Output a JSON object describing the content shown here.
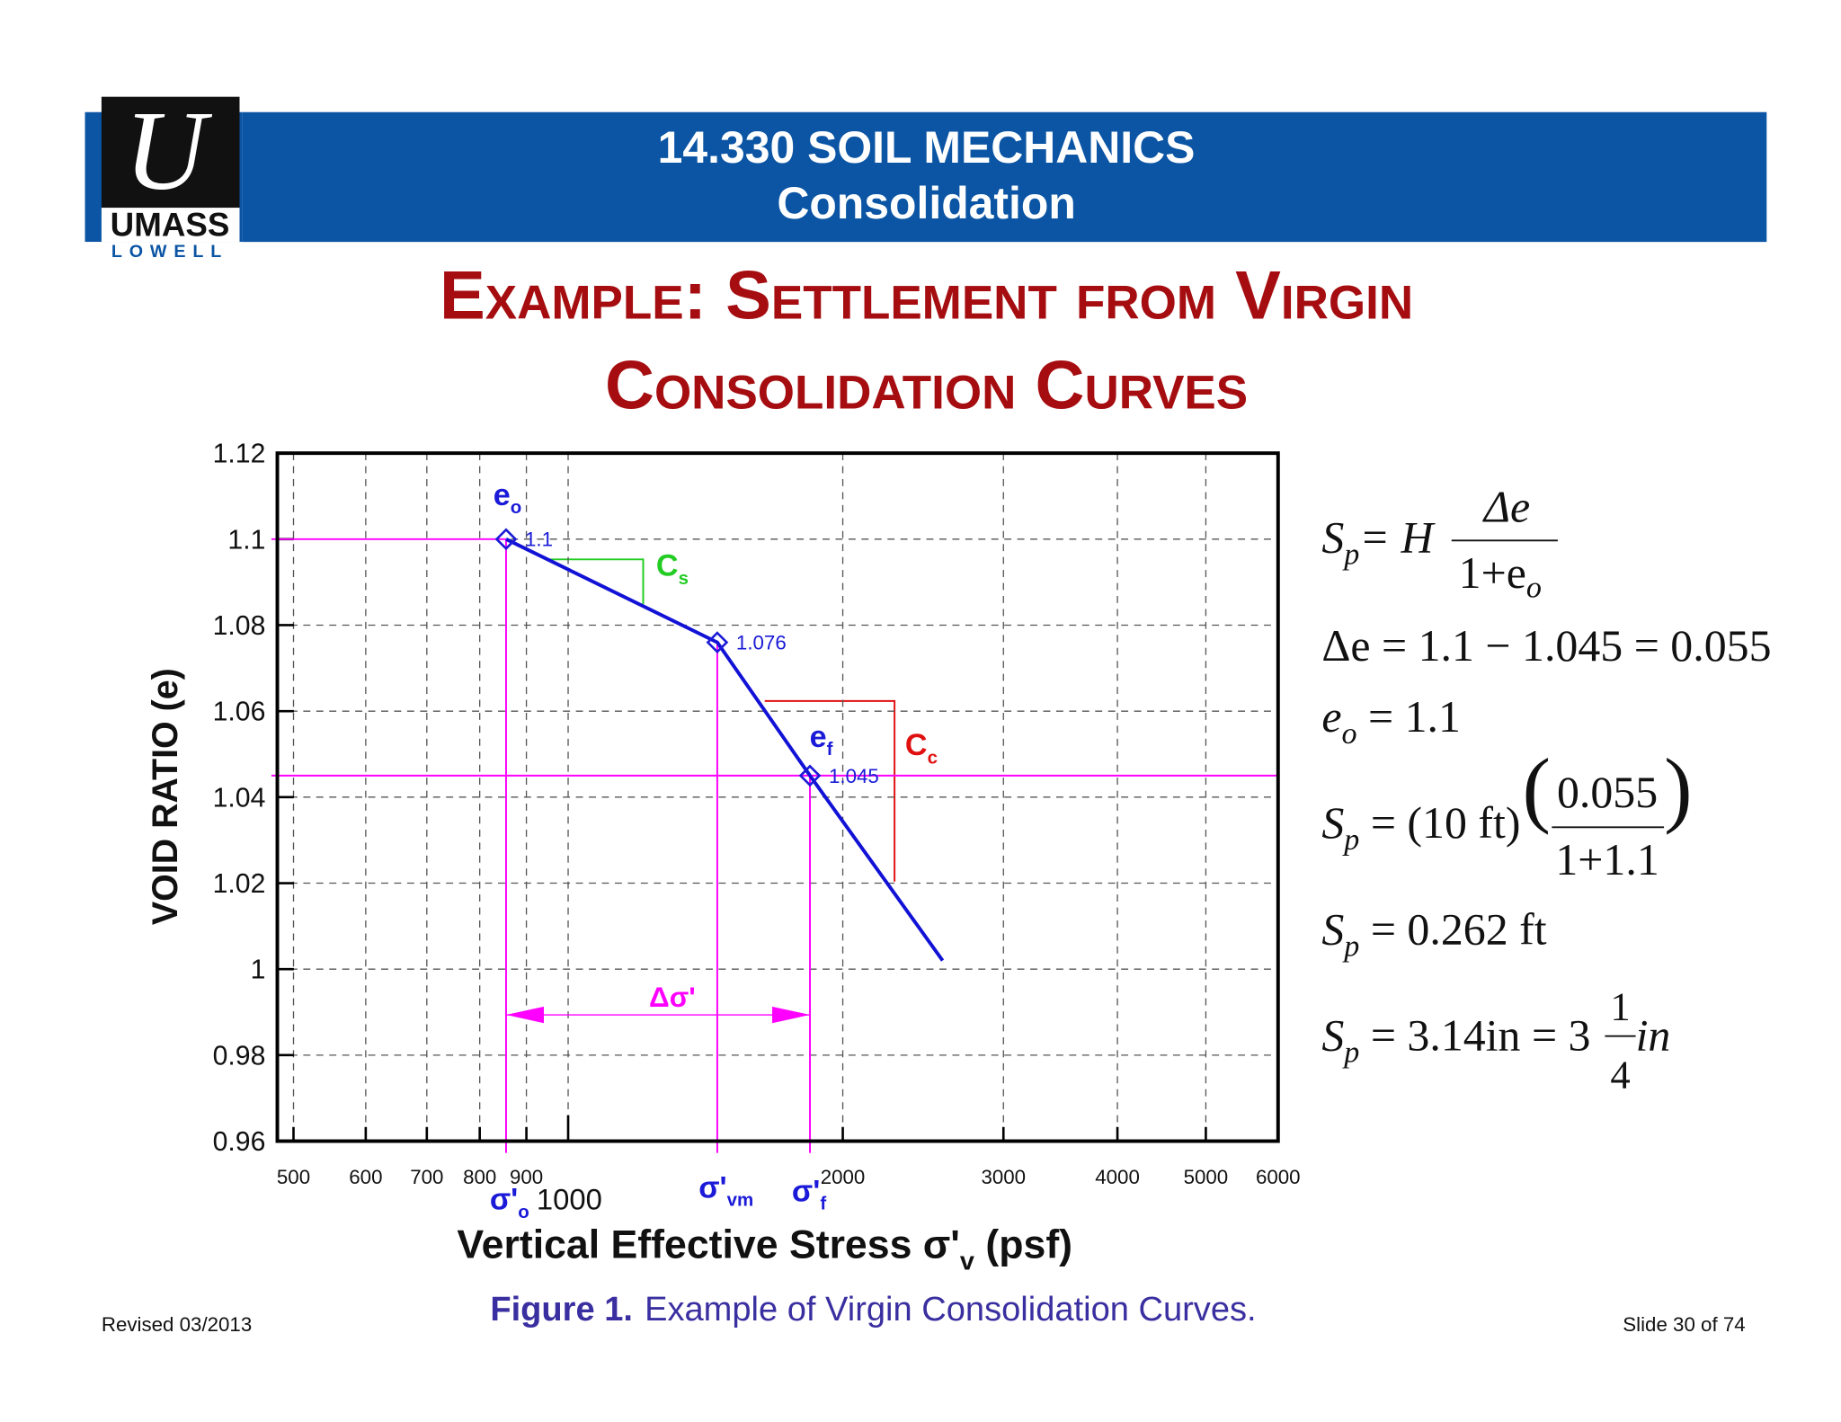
{
  "header": {
    "course": "14.330 SOIL MECHANICS",
    "topic": "Consolidation",
    "logo_top": "UMASS",
    "logo_bottom": "LOWELL"
  },
  "title": {
    "line1": "Example:  Settlement from Virgin",
    "line2": "Consolidation Curves"
  },
  "chart_data": {
    "type": "line",
    "xlabel": [
      "Vertical Effective Stress σ'",
      "v",
      " (psf)"
    ],
    "ylabel": "VOID RATIO (e)",
    "xscale": "log",
    "xlim": [
      480,
      6000
    ],
    "ylim": [
      0.96,
      1.12
    ],
    "xticks": [
      500,
      600,
      700,
      800,
      900,
      1000,
      2000,
      3000,
      4000,
      5000,
      6000
    ],
    "yticks": [
      0.96,
      0.98,
      1,
      1.02,
      1.04,
      1.06,
      1.08,
      1.1,
      1.12
    ],
    "grid": true,
    "series": [
      {
        "name": "curve",
        "color": "#1212d6",
        "x": [
          855,
          1457,
          1841,
          2573
        ],
        "values": [
          1.1,
          1.076,
          1.045,
          1.002
        ]
      }
    ],
    "points": {
      "color": "#1a1ad8",
      "x": [
        855,
        1457,
        1841
      ],
      "values": [
        1.1,
        1.076,
        1.045
      ]
    },
    "guide_color": "#ff00ff",
    "annotations": [
      {
        "text": "e",
        "sub": "o"
      },
      {
        "text": "e",
        "sub": "f"
      },
      {
        "text": "C",
        "sub": "s"
      },
      {
        "text": "C",
        "sub": "c"
      },
      {
        "text": "Δσ'",
        "sub": ""
      },
      {
        "text": "σ'",
        "sub": "o"
      },
      {
        "text": "σ'",
        "sub": "vm"
      },
      {
        "text": "σ'",
        "sub": "f"
      }
    ]
  },
  "equations": [
    [
      "S",
      "p",
      "= H",
      "Δe",
      "1+e",
      "o"
    ],
    [
      "Δe = 1.1 − 1.045 = 0.055"
    ],
    [
      "e",
      "o",
      " = 1.1"
    ],
    [
      "S",
      "p",
      " = (10 ft)",
      "0.055",
      "1+1.1"
    ],
    [
      "S",
      "p",
      " = 0.262 ft"
    ],
    [
      "S",
      "p",
      " = 3.14in = 3",
      "1",
      "4",
      " in"
    ]
  ],
  "caption": {
    "label": "Figure 1.",
    "text": "Example of Virgin Consolidation Curves."
  },
  "footer": {
    "revised": "Revised 03/2013",
    "slide": "Slide 30 of 74"
  }
}
